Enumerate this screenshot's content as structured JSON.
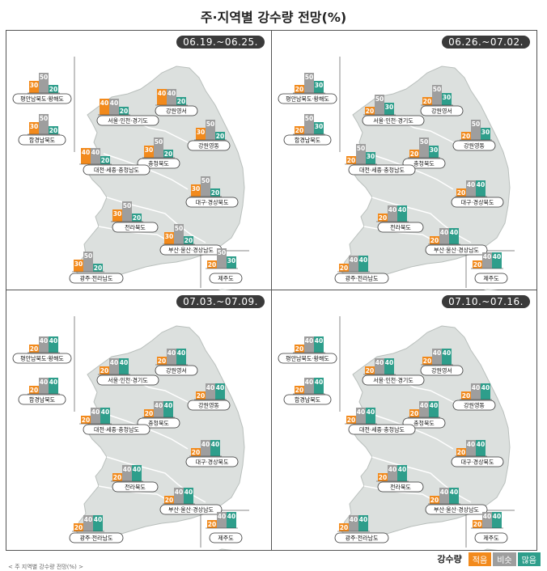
{
  "title": "주·지역별 강수량 전망(%)",
  "legend": {
    "title": "강수량",
    "items": [
      {
        "label": "적음",
        "color": "#F28A1C"
      },
      {
        "label": "비슷",
        "color": "#9E9E9E"
      },
      {
        "label": "많음",
        "color": "#2E9E8B"
      }
    ]
  },
  "footnote": "< 주 지역별 강수량 전망(%) >",
  "chart_data": [
    {
      "type": "bar",
      "period": "06.19.~06.25.",
      "series_order": [
        "적음",
        "비슷",
        "많음"
      ],
      "regions": [
        {
          "name": "평안남북도·황해도",
          "values": [
            30,
            50,
            20
          ]
        },
        {
          "name": "함경남북도",
          "values": [
            30,
            50,
            20
          ]
        },
        {
          "name": "서울·인천·경기도",
          "values": [
            40,
            40,
            20
          ]
        },
        {
          "name": "강원영서",
          "values": [
            40,
            40,
            20
          ]
        },
        {
          "name": "강원영동",
          "values": [
            30,
            50,
            20
          ]
        },
        {
          "name": "충청북도",
          "values": [
            30,
            50,
            20
          ]
        },
        {
          "name": "대전·세종·충청남도",
          "values": [
            40,
            40,
            20
          ]
        },
        {
          "name": "대구·경상북도",
          "values": [
            30,
            50,
            20
          ]
        },
        {
          "name": "전라북도",
          "values": [
            30,
            50,
            20
          ]
        },
        {
          "name": "부산·울산·경상남도",
          "values": [
            30,
            50,
            20
          ]
        },
        {
          "name": "광주·전라남도",
          "values": [
            30,
            50,
            20
          ]
        },
        {
          "name": "제주도",
          "values": [
            20,
            50,
            30
          ]
        }
      ]
    },
    {
      "type": "bar",
      "period": "06.26.~07.02.",
      "series_order": [
        "적음",
        "비슷",
        "많음"
      ],
      "regions": [
        {
          "name": "평안남북도·황해도",
          "values": [
            20,
            50,
            30
          ]
        },
        {
          "name": "함경남북도",
          "values": [
            20,
            50,
            30
          ]
        },
        {
          "name": "서울·인천·경기도",
          "values": [
            20,
            50,
            30
          ]
        },
        {
          "name": "강원영서",
          "values": [
            20,
            50,
            30
          ]
        },
        {
          "name": "강원영동",
          "values": [
            20,
            50,
            30
          ]
        },
        {
          "name": "충청북도",
          "values": [
            20,
            50,
            30
          ]
        },
        {
          "name": "대전·세종·충청남도",
          "values": [
            20,
            50,
            30
          ]
        },
        {
          "name": "대구·경상북도",
          "values": [
            20,
            40,
            40
          ]
        },
        {
          "name": "전라북도",
          "values": [
            20,
            40,
            40
          ]
        },
        {
          "name": "부산·울산·경상남도",
          "values": [
            20,
            40,
            40
          ]
        },
        {
          "name": "광주·전라남도",
          "values": [
            20,
            40,
            40
          ]
        },
        {
          "name": "제주도",
          "values": [
            20,
            40,
            40
          ]
        }
      ]
    },
    {
      "type": "bar",
      "period": "07.03.~07.09.",
      "series_order": [
        "적음",
        "비슷",
        "많음"
      ],
      "regions": [
        {
          "name": "평안남북도·황해도",
          "values": [
            20,
            40,
            40
          ]
        },
        {
          "name": "함경남북도",
          "values": [
            20,
            40,
            40
          ]
        },
        {
          "name": "서울·인천·경기도",
          "values": [
            20,
            40,
            40
          ]
        },
        {
          "name": "강원영서",
          "values": [
            20,
            40,
            40
          ]
        },
        {
          "name": "강원영동",
          "values": [
            20,
            40,
            40
          ]
        },
        {
          "name": "충청북도",
          "values": [
            20,
            40,
            40
          ]
        },
        {
          "name": "대전·세종·충청남도",
          "values": [
            20,
            40,
            40
          ]
        },
        {
          "name": "대구·경상북도",
          "values": [
            20,
            40,
            40
          ]
        },
        {
          "name": "전라북도",
          "values": [
            20,
            40,
            40
          ]
        },
        {
          "name": "부산·울산·경상남도",
          "values": [
            20,
            40,
            40
          ]
        },
        {
          "name": "광주·전라남도",
          "values": [
            20,
            40,
            40
          ]
        },
        {
          "name": "제주도",
          "values": [
            20,
            40,
            40
          ]
        }
      ]
    },
    {
      "type": "bar",
      "period": "07.10.~07.16.",
      "series_order": [
        "적음",
        "비슷",
        "많음"
      ],
      "regions": [
        {
          "name": "평안남북도·황해도",
          "values": [
            20,
            40,
            40
          ]
        },
        {
          "name": "함경남북도",
          "values": [
            20,
            40,
            40
          ]
        },
        {
          "name": "서울·인천·경기도",
          "values": [
            20,
            40,
            40
          ]
        },
        {
          "name": "강원영서",
          "values": [
            20,
            40,
            40
          ]
        },
        {
          "name": "강원영동",
          "values": [
            20,
            40,
            40
          ]
        },
        {
          "name": "충청북도",
          "values": [
            20,
            40,
            40
          ]
        },
        {
          "name": "대전·세종·충청남도",
          "values": [
            20,
            40,
            40
          ]
        },
        {
          "name": "대구·경상북도",
          "values": [
            20,
            40,
            40
          ]
        },
        {
          "name": "전라북도",
          "values": [
            20,
            40,
            40
          ]
        },
        {
          "name": "부산·울산·경상남도",
          "values": [
            20,
            40,
            40
          ]
        },
        {
          "name": "광주·전라남도",
          "values": [
            20,
            40,
            40
          ]
        },
        {
          "name": "제주도",
          "values": [
            20,
            40,
            40
          ]
        }
      ]
    }
  ]
}
